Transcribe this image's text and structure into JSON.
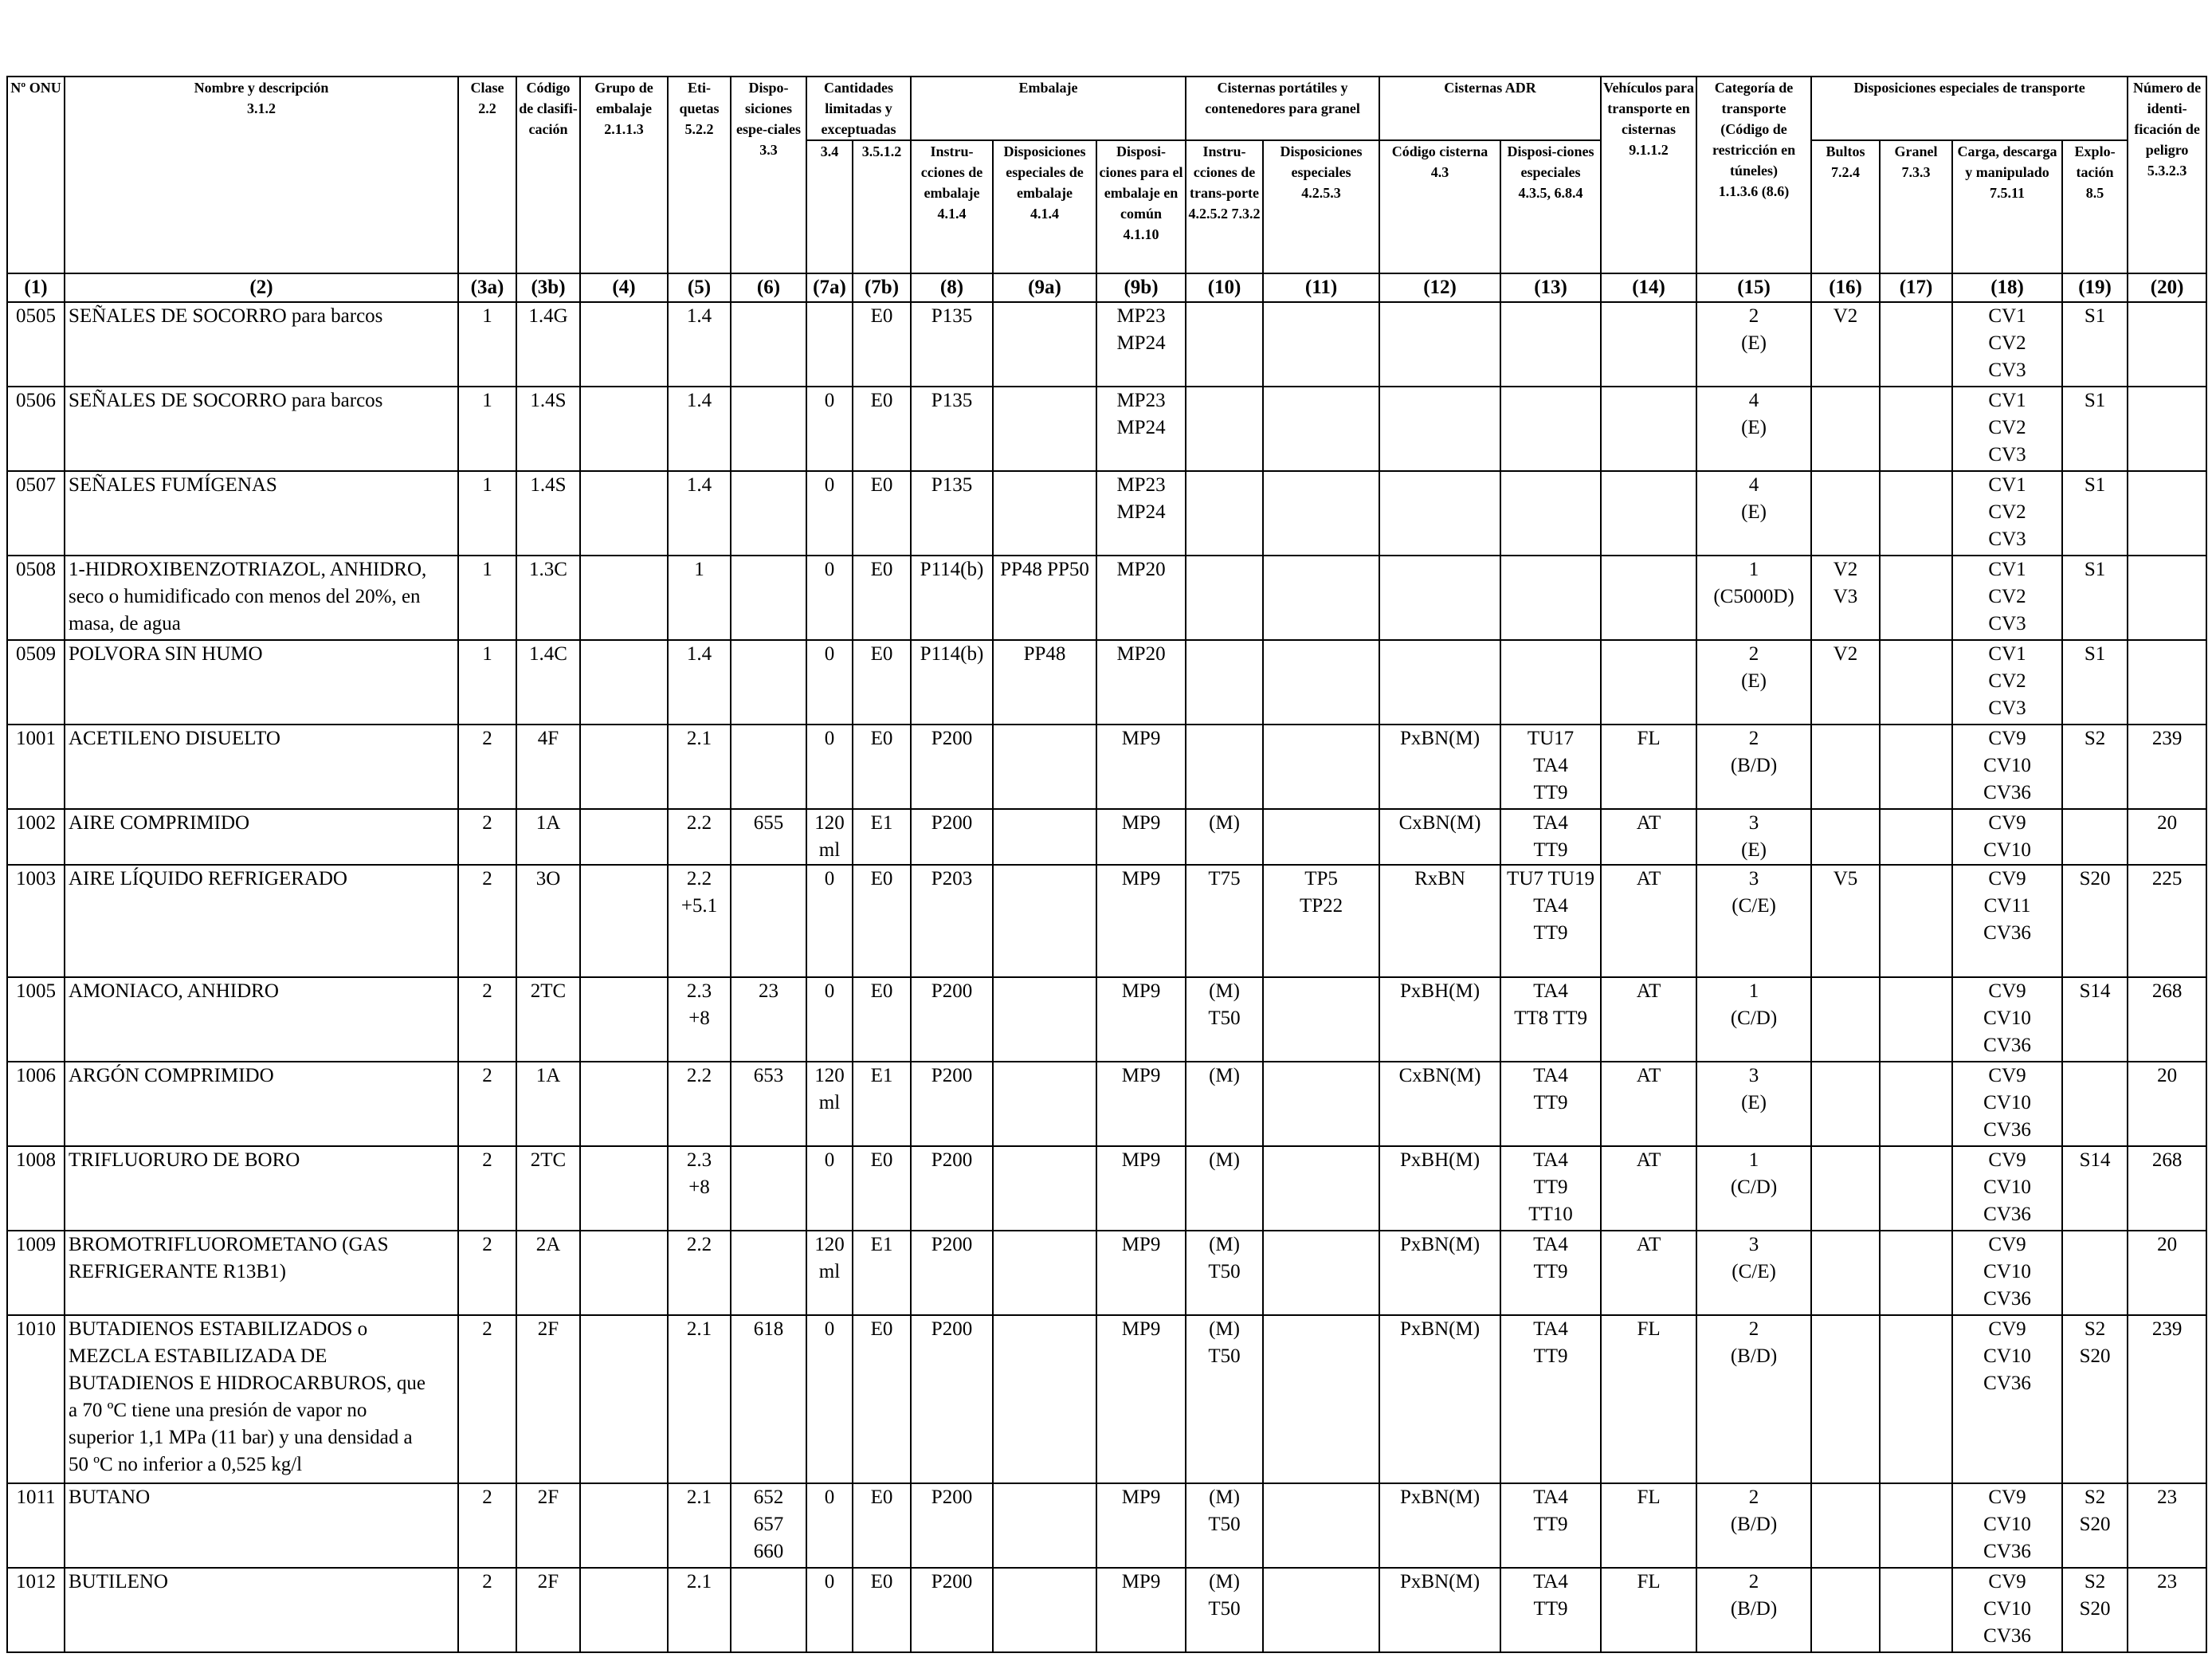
{
  "headers": [
    {
      "label": "Nº ONU",
      "ref": ""
    },
    {
      "label": "Nombre y descripción",
      "ref": "3.1.2"
    },
    {
      "label": "Clase",
      "ref": "2.2"
    },
    {
      "label": "Código de clasifi-cación",
      "ref": ""
    },
    {
      "label": "Grupo de embalaje",
      "ref": "2.1.1.3"
    },
    {
      "label": "Eti-quetas",
      "ref": "5.2.2"
    },
    {
      "label": "Dispo-siciones espe-ciales",
      "ref": "3.3"
    },
    {
      "label": "Cantidades limitadas y exceptuadas",
      "ref": ""
    },
    {
      "label": "Embalaje",
      "ref": ""
    },
    {
      "label": "Cisternas portátiles y contenedores para granel",
      "ref": ""
    },
    {
      "label": "Cisternas ADR",
      "ref": ""
    },
    {
      "label": "Vehículos para transporte en cisternas",
      "ref": "9.1.1.2"
    },
    {
      "label": "Categoría de transporte (Código de restricción en túneles)",
      "ref": "1.1.3.6 (8.6)"
    },
    {
      "label": "Disposiciones especiales de transporte",
      "ref": ""
    },
    {
      "label": "Número de identi-ficación de peligro",
      "ref": "5.3.2.3"
    }
  ],
  "subheaders": {
    "ref_7a": "3.4",
    "ref_7b": "3.5.1.2",
    "emb_instr": "Instru-cciones de embalaje",
    "ref_8": "4.1.4",
    "emb_disp": "Disposiciones especiales de embalaje",
    "ref_9a": "4.1.4",
    "emb_comun": "Disposi-ciones para el embalaje en común",
    "ref_9b": "4.1.10",
    "cp_instr": "Instru-cciones de trans-porte",
    "ref_10": "4.2.5.2 7.3.2",
    "cp_disp": "Disposiciones especiales",
    "ref_11": "4.2.5.3",
    "adr_codigo": "Código cisterna",
    "ref_12": "4.3",
    "adr_disp": "Disposi-ciones especiales",
    "ref_13": "4.3.5, 6.8.4",
    "dt_bultos": "Bultos",
    "ref_16": "7.2.4",
    "dt_granel": "Granel",
    "ref_17": "7.3.3",
    "dt_carga": "Carga, descarga y manipulado",
    "ref_18": "7.5.11",
    "dt_explo": "Explo-tación",
    "ref_19": "8.5"
  },
  "column_numbers": [
    "(1)",
    "(2)",
    "(3a)",
    "(3b)",
    "(4)",
    "(5)",
    "(6)",
    "(7a)",
    "(7b)",
    "(8)",
    "(9a)",
    "(9b)",
    "(10)",
    "(11)",
    "(12)",
    "(13)",
    "(14)",
    "(15)",
    "(16)",
    "(17)",
    "(18)",
    "(19)",
    "(20)"
  ],
  "rows": [
    {
      "onu": "0505",
      "name": [
        "SEÑALES DE SOCORRO para barcos"
      ],
      "clase": "1",
      "codigo": "1.4G",
      "grupo": "",
      "etiquetas": [
        "1.4"
      ],
      "disp": [],
      "lq": [],
      "eq": "E0",
      "instr": "P135",
      "dispEmb": "",
      "comun": [
        "MP23",
        "MP24"
      ],
      "cpInstr": [],
      "cpDisp": [],
      "adrCod": "",
      "adrDisp": [],
      "veh": "",
      "cat": [
        "2",
        "(E)"
      ],
      "bultos": [
        "V2"
      ],
      "granel": "",
      "carga": [
        "CV1",
        "CV2",
        "CV3"
      ],
      "explo": [
        "S1"
      ],
      "peligro": ""
    },
    {
      "onu": "0506",
      "name": [
        "SEÑALES DE SOCORRO para barcos"
      ],
      "clase": "1",
      "codigo": "1.4S",
      "grupo": "",
      "etiquetas": [
        "1.4"
      ],
      "disp": [],
      "lq": [
        "0"
      ],
      "eq": "E0",
      "instr": "P135",
      "dispEmb": "",
      "comun": [
        "MP23",
        "MP24"
      ],
      "cpInstr": [],
      "cpDisp": [],
      "adrCod": "",
      "adrDisp": [],
      "veh": "",
      "cat": [
        "4",
        "(E)"
      ],
      "bultos": [],
      "granel": "",
      "carga": [
        "CV1",
        "CV2",
        "CV3"
      ],
      "explo": [
        "S1"
      ],
      "peligro": ""
    },
    {
      "onu": "0507",
      "name": [
        "SEÑALES FUMÍGENAS"
      ],
      "clase": "1",
      "codigo": "1.4S",
      "grupo": "",
      "etiquetas": [
        "1.4"
      ],
      "disp": [],
      "lq": [
        "0"
      ],
      "eq": "E0",
      "instr": "P135",
      "dispEmb": "",
      "comun": [
        "MP23",
        "MP24"
      ],
      "cpInstr": [],
      "cpDisp": [],
      "adrCod": "",
      "adrDisp": [],
      "veh": "",
      "cat": [
        "4",
        "(E)"
      ],
      "bultos": [],
      "granel": "",
      "carga": [
        "CV1",
        "CV2",
        "CV3"
      ],
      "explo": [
        "S1"
      ],
      "peligro": ""
    },
    {
      "onu": "0508",
      "name": [
        "1-HIDROXIBENZOTRIAZOL, ANHIDRO,",
        "seco o humidificado con menos del 20%, en",
        "masa, de agua"
      ],
      "clase": "1",
      "codigo": "1.3C",
      "grupo": "",
      "etiquetas": [
        "1"
      ],
      "disp": [],
      "lq": [
        "0"
      ],
      "eq": "E0",
      "instr": "P114(b)",
      "dispEmb": "PP48 PP50",
      "comun": [
        "MP20"
      ],
      "cpInstr": [],
      "cpDisp": [],
      "adrCod": "",
      "adrDisp": [],
      "veh": "",
      "cat": [
        "1",
        "(C5000D)"
      ],
      "bultos": [
        "V2",
        "V3"
      ],
      "granel": "",
      "carga": [
        "CV1",
        "CV2",
        "CV3"
      ],
      "explo": [
        "S1"
      ],
      "peligro": ""
    },
    {
      "onu": "0509",
      "name": [
        "POLVORA SIN HUMO"
      ],
      "clase": "1",
      "codigo": "1.4C",
      "grupo": "",
      "etiquetas": [
        "1.4"
      ],
      "disp": [],
      "lq": [
        "0"
      ],
      "eq": "E0",
      "instr": "P114(b)",
      "dispEmb": "PP48",
      "comun": [
        "MP20"
      ],
      "cpInstr": [],
      "cpDisp": [],
      "adrCod": "",
      "adrDisp": [],
      "veh": "",
      "cat": [
        "2",
        "(E)"
      ],
      "bultos": [
        "V2"
      ],
      "granel": "",
      "carga": [
        "CV1",
        "CV2",
        "CV3"
      ],
      "explo": [
        "S1"
      ],
      "peligro": ""
    },
    {
      "onu": "1001",
      "name": [
        "ACETILENO DISUELTO"
      ],
      "clase": "2",
      "codigo": "4F",
      "grupo": "",
      "etiquetas": [
        "2.1"
      ],
      "disp": [],
      "lq": [
        "0"
      ],
      "eq": "E0",
      "instr": "P200",
      "dispEmb": "",
      "comun": [
        "MP9"
      ],
      "cpInstr": [],
      "cpDisp": [],
      "adrCod": "PxBN(M)",
      "adrDisp": [
        "TU17",
        "TA4",
        "TT9"
      ],
      "veh": "FL",
      "cat": [
        "2",
        "(B/D)"
      ],
      "bultos": [],
      "granel": "",
      "carga": [
        "CV9",
        "CV10",
        "CV36"
      ],
      "explo": [
        "S2"
      ],
      "peligro": "239"
    },
    {
      "onu": "1002",
      "name": [
        "AIRE COMPRIMIDO"
      ],
      "clase": "2",
      "codigo": "1A",
      "grupo": "",
      "etiquetas": [
        "2.2"
      ],
      "disp": [
        "655"
      ],
      "lq": [
        "120",
        "ml"
      ],
      "eq": "E1",
      "instr": "P200",
      "dispEmb": "",
      "comun": [
        "MP9"
      ],
      "cpInstr": [
        "(M)"
      ],
      "cpDisp": [],
      "adrCod": "CxBN(M)",
      "adrDisp": [
        "TA4",
        "TT9"
      ],
      "veh": "AT",
      "cat": [
        "3",
        "(E)"
      ],
      "bultos": [],
      "granel": "",
      "carga": [
        "CV9",
        "CV10"
      ],
      "explo": [],
      "peligro": "20"
    },
    {
      "onu": "1003",
      "name": [
        "AIRE LÍQUIDO REFRIGERADO"
      ],
      "clase": "2",
      "codigo": "3O",
      "grupo": "",
      "etiquetas": [
        "2.2",
        "+5.1"
      ],
      "disp": [],
      "lq": [
        "0"
      ],
      "eq": "E0",
      "instr": "P203",
      "dispEmb": "",
      "comun": [
        "MP9"
      ],
      "cpInstr": [
        "T75"
      ],
      "cpDisp": [
        "TP5",
        "TP22"
      ],
      "adrCod": "RxBN",
      "adrDisp": [
        "TU7 TU19",
        "TA4",
        "TT9"
      ],
      "veh": "AT",
      "cat": [
        "3",
        "(C/E)"
      ],
      "bultos": [
        "V5"
      ],
      "granel": "",
      "carga": [
        "CV9",
        "CV11",
        "CV36"
      ],
      "explo": [
        "S20"
      ],
      "peligro": "225"
    },
    {
      "onu": "1005",
      "name": [
        "AMONIACO, ANHIDRO"
      ],
      "clase": "2",
      "codigo": "2TC",
      "grupo": "",
      "etiquetas": [
        "2.3",
        "+8"
      ],
      "disp": [
        "23"
      ],
      "lq": [
        "0"
      ],
      "eq": "E0",
      "instr": "P200",
      "dispEmb": "",
      "comun": [
        "MP9"
      ],
      "cpInstr": [
        "(M)",
        "T50"
      ],
      "cpDisp": [],
      "adrCod": "PxBH(M)",
      "adrDisp": [
        "TA4",
        "TT8 TT9"
      ],
      "veh": "AT",
      "cat": [
        "1",
        "(C/D)"
      ],
      "bultos": [],
      "granel": "",
      "carga": [
        "CV9",
        "CV10",
        "CV36"
      ],
      "explo": [
        "S14"
      ],
      "peligro": "268"
    },
    {
      "onu": "1006",
      "name": [
        "ARGÓN COMPRIMIDO"
      ],
      "clase": "2",
      "codigo": "1A",
      "grupo": "",
      "etiquetas": [
        "2.2"
      ],
      "disp": [
        "653"
      ],
      "lq": [
        "120",
        "ml"
      ],
      "eq": "E1",
      "instr": "P200",
      "dispEmb": "",
      "comun": [
        "MP9"
      ],
      "cpInstr": [
        "(M)"
      ],
      "cpDisp": [],
      "adrCod": "CxBN(M)",
      "adrDisp": [
        "TA4",
        "TT9"
      ],
      "veh": "AT",
      "cat": [
        "3",
        "(E)"
      ],
      "bultos": [],
      "granel": "",
      "carga": [
        "CV9",
        "CV10",
        "CV36"
      ],
      "explo": [],
      "peligro": "20"
    },
    {
      "onu": "1008",
      "name": [
        "TRIFLUORURO DE BORO"
      ],
      "clase": "2",
      "codigo": "2TC",
      "grupo": "",
      "etiquetas": [
        "2.3",
        "+8"
      ],
      "disp": [],
      "lq": [
        "0"
      ],
      "eq": "E0",
      "instr": "P200",
      "dispEmb": "",
      "comun": [
        "MP9"
      ],
      "cpInstr": [
        "(M)"
      ],
      "cpDisp": [],
      "adrCod": "PxBH(M)",
      "adrDisp": [
        "TA4",
        "TT9",
        "TT10"
      ],
      "veh": "AT",
      "cat": [
        "1",
        "(C/D)"
      ],
      "bultos": [],
      "granel": "",
      "carga": [
        "CV9",
        "CV10",
        "CV36"
      ],
      "explo": [
        "S14"
      ],
      "peligro": "268"
    },
    {
      "onu": "1009",
      "name": [
        "BROMOTRIFLUOROMETANO (GAS",
        "REFRIGERANTE R13B1)"
      ],
      "clase": "2",
      "codigo": "2A",
      "grupo": "",
      "etiquetas": [
        "2.2"
      ],
      "disp": [],
      "lq": [
        "120",
        "ml"
      ],
      "eq": "E1",
      "instr": "P200",
      "dispEmb": "",
      "comun": [
        "MP9"
      ],
      "cpInstr": [
        "(M)",
        "T50"
      ],
      "cpDisp": [],
      "adrCod": "PxBN(M)",
      "adrDisp": [
        "TA4",
        "TT9"
      ],
      "veh": "AT",
      "cat": [
        "3",
        "(C/E)"
      ],
      "bultos": [],
      "granel": "",
      "carga": [
        "CV9",
        "CV10",
        "CV36"
      ],
      "explo": [],
      "peligro": "20"
    },
    {
      "onu": "1010",
      "name": [
        "BUTADIENOS ESTABILIZADOS o",
        "MEZCLA ESTABILIZADA DE",
        "BUTADIENOS E HIDROCARBUROS, que",
        "a 70 ºC tiene una presión de vapor no",
        "superior 1,1 MPa (11 bar) y una densidad a",
        "50 ºC no inferior a 0,525 kg/l"
      ],
      "clase": "2",
      "codigo": "2F",
      "grupo": "",
      "etiquetas": [
        "2.1"
      ],
      "disp": [
        "618"
      ],
      "lq": [
        "0"
      ],
      "eq": "E0",
      "instr": "P200",
      "dispEmb": "",
      "comun": [
        "MP9"
      ],
      "cpInstr": [
        "(M)",
        "T50"
      ],
      "cpDisp": [],
      "adrCod": "PxBN(M)",
      "adrDisp": [
        "TA4",
        "TT9"
      ],
      "veh": "FL",
      "cat": [
        "2",
        "(B/D)"
      ],
      "bultos": [],
      "granel": "",
      "carga": [
        "CV9",
        "CV10",
        "CV36"
      ],
      "explo": [
        "S2",
        "S20"
      ],
      "peligro": "239"
    },
    {
      "onu": "1011",
      "name": [
        "BUTANO"
      ],
      "clase": "2",
      "codigo": "2F",
      "grupo": "",
      "etiquetas": [
        "2.1"
      ],
      "disp": [
        "652",
        "657",
        "660"
      ],
      "lq": [
        "0"
      ],
      "eq": "E0",
      "instr": "P200",
      "dispEmb": "",
      "comun": [
        "MP9"
      ],
      "cpInstr": [
        "(M)",
        "T50"
      ],
      "cpDisp": [],
      "adrCod": "PxBN(M)",
      "adrDisp": [
        "TA4",
        "TT9"
      ],
      "veh": "FL",
      "cat": [
        "2",
        "(B/D)"
      ],
      "bultos": [],
      "granel": "",
      "carga": [
        "CV9",
        "CV10",
        "CV36"
      ],
      "explo": [
        "S2",
        "S20"
      ],
      "peligro": "23"
    },
    {
      "onu": "1012",
      "name": [
        "BUTILENO"
      ],
      "clase": "2",
      "codigo": "2F",
      "grupo": "",
      "etiquetas": [
        "2.1"
      ],
      "disp": [],
      "lq": [
        "0"
      ],
      "eq": "E0",
      "instr": "P200",
      "dispEmb": "",
      "comun": [
        "MP9"
      ],
      "cpInstr": [
        "(M)",
        "T50"
      ],
      "cpDisp": [],
      "adrCod": "PxBN(M)",
      "adrDisp": [
        "TA4",
        "TT9"
      ],
      "veh": "FL",
      "cat": [
        "2",
        "(B/D)"
      ],
      "bultos": [],
      "granel": "",
      "carga": [
        "CV9",
        "CV10",
        "CV36"
      ],
      "explo": [
        "S2",
        "S20"
      ],
      "peligro": "23"
    }
  ]
}
